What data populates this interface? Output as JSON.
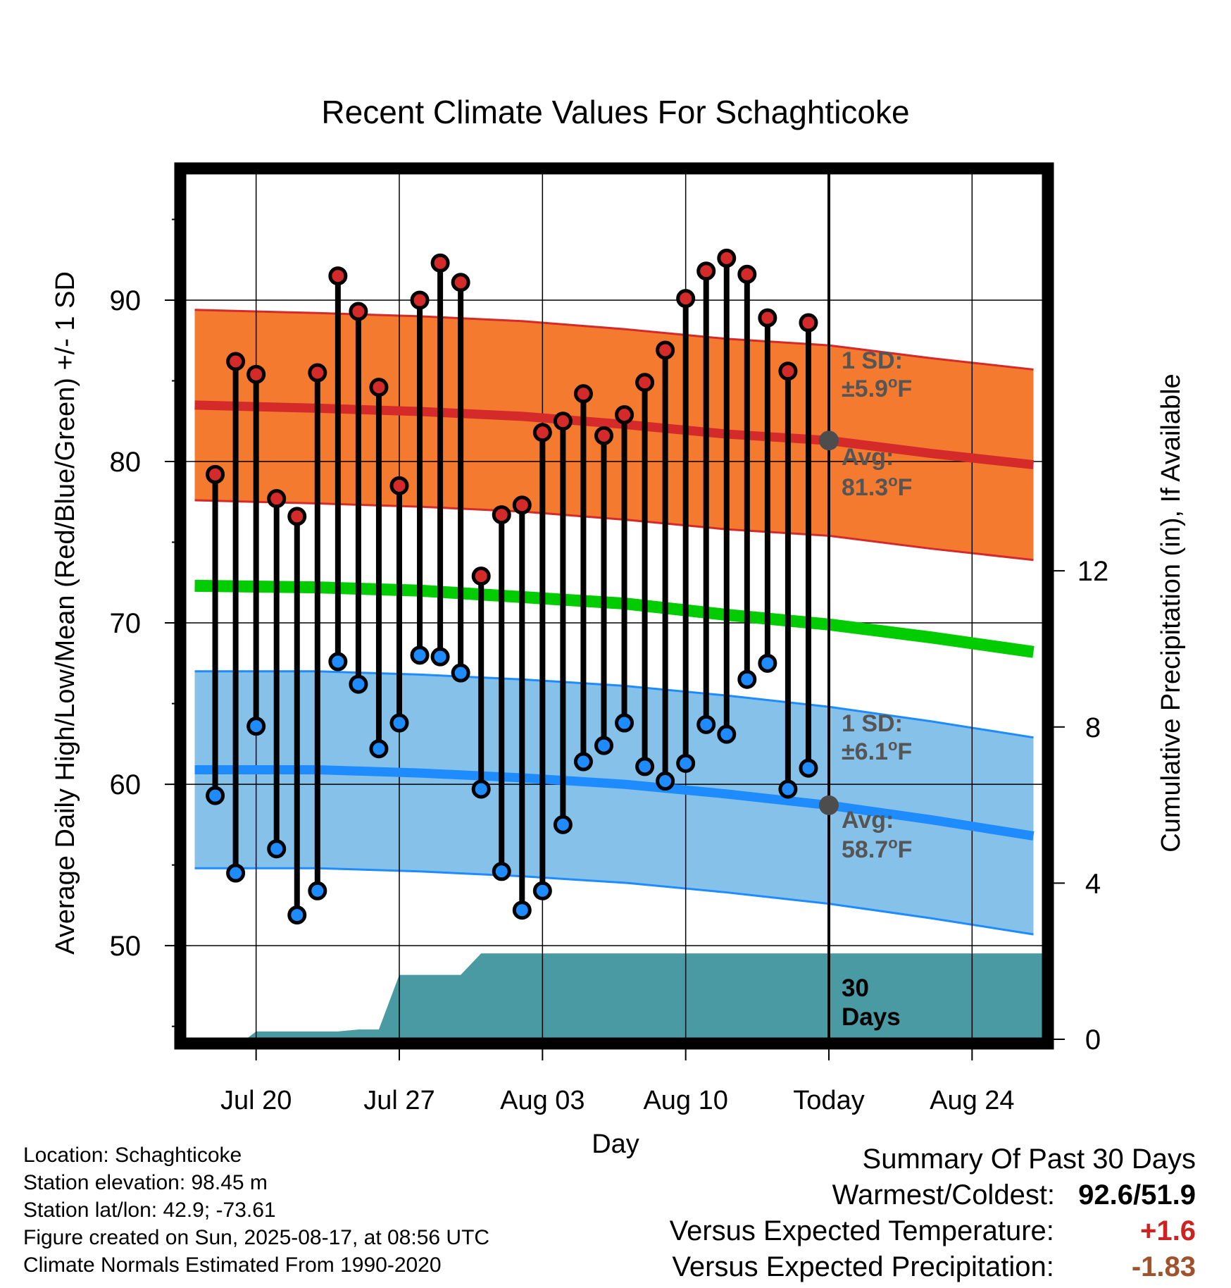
{
  "colors": {
    "high_band": "#f47a30",
    "high_line": "#d42a2a",
    "low_band": "#85c1e9",
    "low_line": "#1e8bff",
    "mean_line": "#00cc00",
    "precip": "#4a9aa3",
    "high_point": "#d42a2a",
    "low_point": "#1e8bff",
    "annotation_text": "#555555",
    "warm_value": "#cc2222",
    "precip_value": "#a0522d"
  },
  "chart_data": {
    "type": "line",
    "title": "Recent Climate Values For Schaghticoke",
    "xlabel": "Day",
    "ylabel": "Average Daily High/Low/Mean (Red/Blue/Green) +/- 1 SD",
    "y2label": "Cumulative Precipitation (in), If Available",
    "ylim": [
      44.2,
      97.9
    ],
    "y2lim": [
      0,
      22.2
    ],
    "xlim": [
      -1.5,
      40.5
    ],
    "x_ticks": [
      {
        "day": 2,
        "label": "Jul 20"
      },
      {
        "day": 9,
        "label": "Jul 27"
      },
      {
        "day": 16,
        "label": "Aug 03"
      },
      {
        "day": 23,
        "label": "Aug 10"
      },
      {
        "day": 30,
        "label": "Today"
      },
      {
        "day": 37,
        "label": "Aug 24"
      }
    ],
    "x_dates": [
      "Jul 18",
      "Jul 19",
      "Jul 20",
      "Jul 21",
      "Jul 22",
      "Jul 23",
      "Jul 24",
      "Jul 25",
      "Jul 26",
      "Jul 27",
      "Jul 28",
      "Jul 29",
      "Jul 30",
      "Jul 31",
      "Aug 01",
      "Aug 02",
      "Aug 03",
      "Aug 04",
      "Aug 05",
      "Aug 06",
      "Aug 07",
      "Aug 08",
      "Aug 09",
      "Aug 10",
      "Aug 11",
      "Aug 12",
      "Aug 13",
      "Aug 14",
      "Aug 15",
      "Aug 16"
    ],
    "y_ticks": [
      50,
      60,
      70,
      80,
      90
    ],
    "y2_ticks": [
      0,
      4,
      8,
      12
    ],
    "grid": true,
    "today_day": 30,
    "highs": [
      79.2,
      86.2,
      85.4,
      77.7,
      76.6,
      85.5,
      91.5,
      89.3,
      84.6,
      78.5,
      90.0,
      92.3,
      91.1,
      72.9,
      76.7,
      77.3,
      81.8,
      82.5,
      84.2,
      81.6,
      82.9,
      84.9,
      86.9,
      90.1,
      91.8,
      92.6,
      91.6,
      88.9,
      85.6,
      88.6
    ],
    "lows": [
      59.3,
      54.5,
      63.6,
      56.0,
      51.9,
      53.4,
      67.6,
      66.2,
      62.2,
      63.8,
      68.0,
      67.9,
      66.9,
      59.7,
      54.6,
      52.2,
      53.4,
      57.5,
      61.4,
      62.4,
      63.8,
      61.1,
      60.2,
      61.3,
      63.7,
      63.1,
      66.5,
      67.5,
      59.7,
      61.0
    ],
    "normal_high": [
      [
        -1,
        83.5
      ],
      [
        5,
        83.3
      ],
      [
        10,
        83.1
      ],
      [
        15,
        82.8
      ],
      [
        20,
        82.3
      ],
      [
        25,
        81.7
      ],
      [
        30,
        81.3
      ],
      [
        35,
        80.5
      ],
      [
        40,
        79.8
      ]
    ],
    "normal_high_sd": 5.9,
    "normal_low": [
      [
        -1,
        60.9
      ],
      [
        5,
        60.9
      ],
      [
        10,
        60.7
      ],
      [
        15,
        60.4
      ],
      [
        20,
        60.0
      ],
      [
        25,
        59.4
      ],
      [
        30,
        58.7
      ],
      [
        35,
        57.8
      ],
      [
        40,
        56.8
      ]
    ],
    "normal_low_sd": 6.1,
    "normal_mean": [
      [
        -1,
        72.3
      ],
      [
        5,
        72.2
      ],
      [
        10,
        72.0
      ],
      [
        15,
        71.6
      ],
      [
        20,
        71.2
      ],
      [
        25,
        70.5
      ],
      [
        30,
        69.9
      ],
      [
        35,
        69.1
      ],
      [
        40,
        68.2
      ]
    ],
    "precip_cumulative": [
      [
        -1,
        0
      ],
      [
        1.5,
        0
      ],
      [
        2,
        0.2
      ],
      [
        6,
        0.2
      ],
      [
        7,
        0.25
      ],
      [
        8,
        0.25
      ],
      [
        9,
        1.65
      ],
      [
        12,
        1.65
      ],
      [
        13,
        2.2
      ],
      [
        40.5,
        2.2
      ]
    ],
    "annotations": {
      "high_sd_label": "1 SD:",
      "high_sd_value": "±5.9",
      "high_avg_label": "Avg:",
      "high_avg_value": "81.3",
      "low_sd_label": "1 SD:",
      "low_sd_value": "±6.1",
      "low_avg_label": "Avg:",
      "low_avg_value": "58.7",
      "unit_super": "o",
      "unit_letter": "F",
      "precip_label_1": "30",
      "precip_label_2": "Days"
    }
  },
  "info": {
    "location": "Location: Schaghticoke",
    "elevation": "Station elevation: 98.45 m",
    "latlon": "Station lat/lon: 42.9; -73.61",
    "created": "Figure created on Sun, 2025-08-17, at 08:56 UTC",
    "normals": "Climate Normals Estimated From 1990-2020"
  },
  "summary": {
    "title": "Summary Of Past 30 Days",
    "warm_cold_label": "Warmest/Coldest:",
    "warm_cold_value": "92.6/51.9",
    "temp_label": "Versus Expected Temperature:",
    "temp_value": "+1.6",
    "precip_label": "Versus Expected Precipitation:",
    "precip_value": "-1.83"
  }
}
